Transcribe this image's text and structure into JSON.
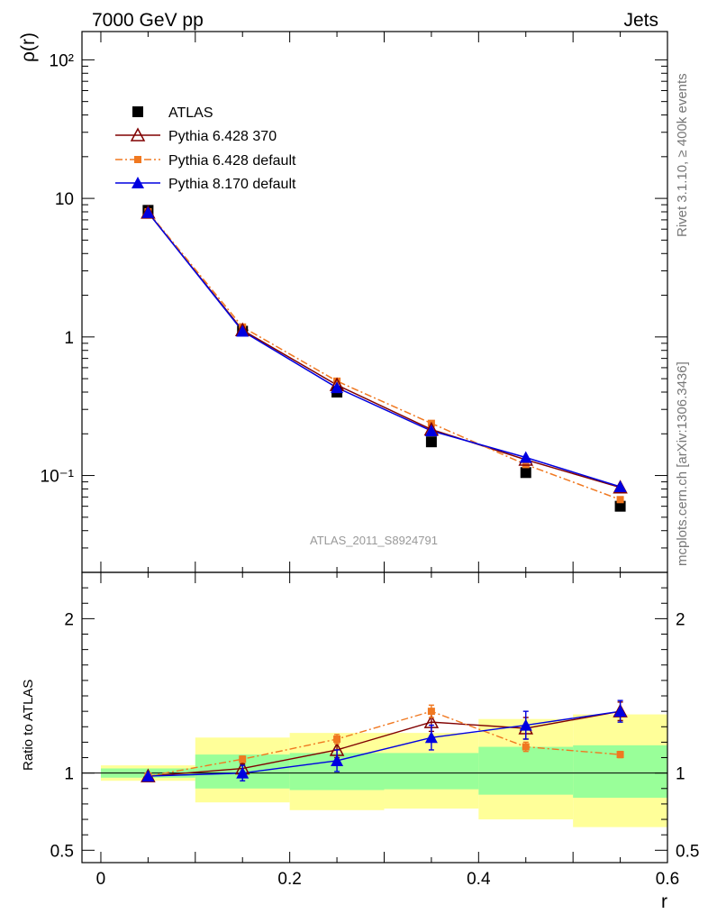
{
  "header": {
    "left": "7000 GeV pp",
    "right": "Jets"
  },
  "side_labels": {
    "top": "Rivet 3.1.10, ≥ 400k events",
    "bottom": "mcplots.cern.ch [arXiv:1306.3436]"
  },
  "watermark": "ATLAS_2011_S8924791",
  "colors": {
    "data": "#000000",
    "py6_370": "#800000",
    "py6_default": "#f07820",
    "py8": "#0000e0",
    "band_inner": "#99ff99",
    "band_outer": "#ffff99"
  },
  "chart_data": [
    {
      "type": "line",
      "panel": "main",
      "ylabel": "ρ(r)",
      "yscale": "log",
      "ylim": [
        0.02,
        160
      ],
      "xlim": [
        -0.02,
        0.6
      ],
      "ytick_labels": [
        "10⁻¹",
        "1",
        "10",
        "10²"
      ],
      "ytick_values": [
        0.1,
        1,
        10,
        100
      ],
      "legend_position": "top-left",
      "x": [
        0.05,
        0.15,
        0.25,
        0.35,
        0.45,
        0.55
      ],
      "series": [
        {
          "name": "ATLAS",
          "marker": "square",
          "values": [
            8.2,
            1.1,
            0.4,
            0.175,
            0.105,
            0.06
          ]
        },
        {
          "name": "Pythia 6.428 370",
          "marker": "open-triangle",
          "line": "solid",
          "values": [
            7.9,
            1.12,
            0.45,
            0.215,
            0.13,
            0.082
          ]
        },
        {
          "name": "Pythia 6.428 default",
          "marker": "small-square",
          "line": "dashdot",
          "values": [
            8.0,
            1.18,
            0.48,
            0.238,
            0.12,
            0.067
          ]
        },
        {
          "name": "Pythia 8.170 default",
          "marker": "triangle",
          "line": "solid",
          "values": [
            7.9,
            1.1,
            0.43,
            0.21,
            0.135,
            0.083
          ]
        }
      ]
    },
    {
      "type": "line",
      "panel": "ratio",
      "ylabel": "Ratio to ATLAS",
      "xlabel": "r",
      "xlim": [
        -0.02,
        0.6
      ],
      "xtick_values": [
        0,
        0.2,
        0.4,
        0.6
      ],
      "xtick_labels": [
        "0",
        "0.2",
        "0.4",
        "0.6"
      ],
      "ylim": [
        0.42,
        2.3
      ],
      "ytick_values": [
        0.5,
        1,
        2
      ],
      "ytick_labels": [
        "0.5",
        "1",
        "2"
      ],
      "uncertainty_bands": [
        {
          "x0": 0.0,
          "x1": 0.1,
          "inner": [
            0.97,
            1.03
          ],
          "outer": [
            0.95,
            1.05
          ]
        },
        {
          "x0": 0.1,
          "x1": 0.2,
          "inner": [
            0.9,
            1.12
          ],
          "outer": [
            0.81,
            1.23
          ]
        },
        {
          "x0": 0.2,
          "x1": 0.3,
          "inner": [
            0.89,
            1.13
          ],
          "outer": [
            0.76,
            1.26
          ]
        },
        {
          "x0": 0.3,
          "x1": 0.4,
          "inner": [
            0.895,
            1.13
          ],
          "outer": [
            0.77,
            1.26
          ]
        },
        {
          "x0": 0.4,
          "x1": 0.5,
          "inner": [
            0.86,
            1.17
          ],
          "outer": [
            0.7,
            1.35
          ]
        },
        {
          "x0": 0.5,
          "x1": 0.6,
          "inner": [
            0.84,
            1.18
          ],
          "outer": [
            0.65,
            1.38
          ]
        }
      ],
      "x": [
        0.05,
        0.15,
        0.25,
        0.35,
        0.45,
        0.55
      ],
      "series": [
        {
          "name": "Pythia 6.428 370",
          "values": [
            0.98,
            1.03,
            1.15,
            1.33,
            1.29,
            1.4
          ],
          "errors": [
            0.01,
            0.03,
            0.05,
            0.06,
            0.07,
            0.06
          ]
        },
        {
          "name": "Pythia 6.428 default",
          "values": [
            0.98,
            1.09,
            1.22,
            1.4,
            1.17,
            1.12
          ],
          "errors": [
            0.01,
            0.02,
            0.03,
            0.04,
            0.03,
            0.02
          ]
        },
        {
          "name": "Pythia 8.170 default",
          "values": [
            0.98,
            1.0,
            1.08,
            1.23,
            1.31,
            1.4
          ],
          "errors": [
            0.01,
            0.05,
            0.07,
            0.08,
            0.09,
            0.07
          ]
        }
      ]
    }
  ]
}
